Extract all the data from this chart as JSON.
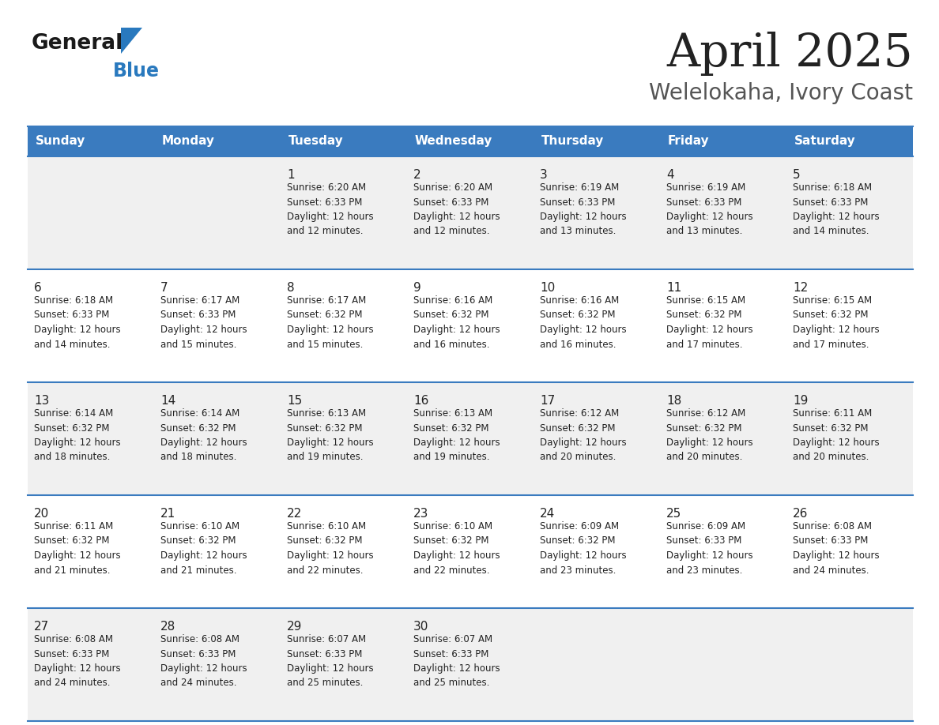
{
  "title": "April 2025",
  "subtitle": "Welelokaha, Ivory Coast",
  "header_bg": "#3a7bbf",
  "header_text_color": "#ffffff",
  "day_names": [
    "Sunday",
    "Monday",
    "Tuesday",
    "Wednesday",
    "Thursday",
    "Friday",
    "Saturday"
  ],
  "row_bg_odd": "#f0f0f0",
  "row_bg_even": "#ffffff",
  "cell_border_color": "#3a7bbf",
  "text_color": "#222222",
  "title_color": "#222222",
  "subtitle_color": "#555555",
  "logo_general_color": "#1a1a1a",
  "logo_blue_color": "#2979be",
  "weeks": [
    [
      {
        "day": null,
        "info": null
      },
      {
        "day": null,
        "info": null
      },
      {
        "day": 1,
        "info": "Sunrise: 6:20 AM\nSunset: 6:33 PM\nDaylight: 12 hours\nand 12 minutes."
      },
      {
        "day": 2,
        "info": "Sunrise: 6:20 AM\nSunset: 6:33 PM\nDaylight: 12 hours\nand 12 minutes."
      },
      {
        "day": 3,
        "info": "Sunrise: 6:19 AM\nSunset: 6:33 PM\nDaylight: 12 hours\nand 13 minutes."
      },
      {
        "day": 4,
        "info": "Sunrise: 6:19 AM\nSunset: 6:33 PM\nDaylight: 12 hours\nand 13 minutes."
      },
      {
        "day": 5,
        "info": "Sunrise: 6:18 AM\nSunset: 6:33 PM\nDaylight: 12 hours\nand 14 minutes."
      }
    ],
    [
      {
        "day": 6,
        "info": "Sunrise: 6:18 AM\nSunset: 6:33 PM\nDaylight: 12 hours\nand 14 minutes."
      },
      {
        "day": 7,
        "info": "Sunrise: 6:17 AM\nSunset: 6:33 PM\nDaylight: 12 hours\nand 15 minutes."
      },
      {
        "day": 8,
        "info": "Sunrise: 6:17 AM\nSunset: 6:32 PM\nDaylight: 12 hours\nand 15 minutes."
      },
      {
        "day": 9,
        "info": "Sunrise: 6:16 AM\nSunset: 6:32 PM\nDaylight: 12 hours\nand 16 minutes."
      },
      {
        "day": 10,
        "info": "Sunrise: 6:16 AM\nSunset: 6:32 PM\nDaylight: 12 hours\nand 16 minutes."
      },
      {
        "day": 11,
        "info": "Sunrise: 6:15 AM\nSunset: 6:32 PM\nDaylight: 12 hours\nand 17 minutes."
      },
      {
        "day": 12,
        "info": "Sunrise: 6:15 AM\nSunset: 6:32 PM\nDaylight: 12 hours\nand 17 minutes."
      }
    ],
    [
      {
        "day": 13,
        "info": "Sunrise: 6:14 AM\nSunset: 6:32 PM\nDaylight: 12 hours\nand 18 minutes."
      },
      {
        "day": 14,
        "info": "Sunrise: 6:14 AM\nSunset: 6:32 PM\nDaylight: 12 hours\nand 18 minutes."
      },
      {
        "day": 15,
        "info": "Sunrise: 6:13 AM\nSunset: 6:32 PM\nDaylight: 12 hours\nand 19 minutes."
      },
      {
        "day": 16,
        "info": "Sunrise: 6:13 AM\nSunset: 6:32 PM\nDaylight: 12 hours\nand 19 minutes."
      },
      {
        "day": 17,
        "info": "Sunrise: 6:12 AM\nSunset: 6:32 PM\nDaylight: 12 hours\nand 20 minutes."
      },
      {
        "day": 18,
        "info": "Sunrise: 6:12 AM\nSunset: 6:32 PM\nDaylight: 12 hours\nand 20 minutes."
      },
      {
        "day": 19,
        "info": "Sunrise: 6:11 AM\nSunset: 6:32 PM\nDaylight: 12 hours\nand 20 minutes."
      }
    ],
    [
      {
        "day": 20,
        "info": "Sunrise: 6:11 AM\nSunset: 6:32 PM\nDaylight: 12 hours\nand 21 minutes."
      },
      {
        "day": 21,
        "info": "Sunrise: 6:10 AM\nSunset: 6:32 PM\nDaylight: 12 hours\nand 21 minutes."
      },
      {
        "day": 22,
        "info": "Sunrise: 6:10 AM\nSunset: 6:32 PM\nDaylight: 12 hours\nand 22 minutes."
      },
      {
        "day": 23,
        "info": "Sunrise: 6:10 AM\nSunset: 6:32 PM\nDaylight: 12 hours\nand 22 minutes."
      },
      {
        "day": 24,
        "info": "Sunrise: 6:09 AM\nSunset: 6:32 PM\nDaylight: 12 hours\nand 23 minutes."
      },
      {
        "day": 25,
        "info": "Sunrise: 6:09 AM\nSunset: 6:33 PM\nDaylight: 12 hours\nand 23 minutes."
      },
      {
        "day": 26,
        "info": "Sunrise: 6:08 AM\nSunset: 6:33 PM\nDaylight: 12 hours\nand 24 minutes."
      }
    ],
    [
      {
        "day": 27,
        "info": "Sunrise: 6:08 AM\nSunset: 6:33 PM\nDaylight: 12 hours\nand 24 minutes."
      },
      {
        "day": 28,
        "info": "Sunrise: 6:08 AM\nSunset: 6:33 PM\nDaylight: 12 hours\nand 24 minutes."
      },
      {
        "day": 29,
        "info": "Sunrise: 6:07 AM\nSunset: 6:33 PM\nDaylight: 12 hours\nand 25 minutes."
      },
      {
        "day": 30,
        "info": "Sunrise: 6:07 AM\nSunset: 6:33 PM\nDaylight: 12 hours\nand 25 minutes."
      },
      {
        "day": null,
        "info": null
      },
      {
        "day": null,
        "info": null
      },
      {
        "day": null,
        "info": null
      }
    ]
  ],
  "figsize": [
    11.88,
    9.18
  ],
  "dpi": 100
}
